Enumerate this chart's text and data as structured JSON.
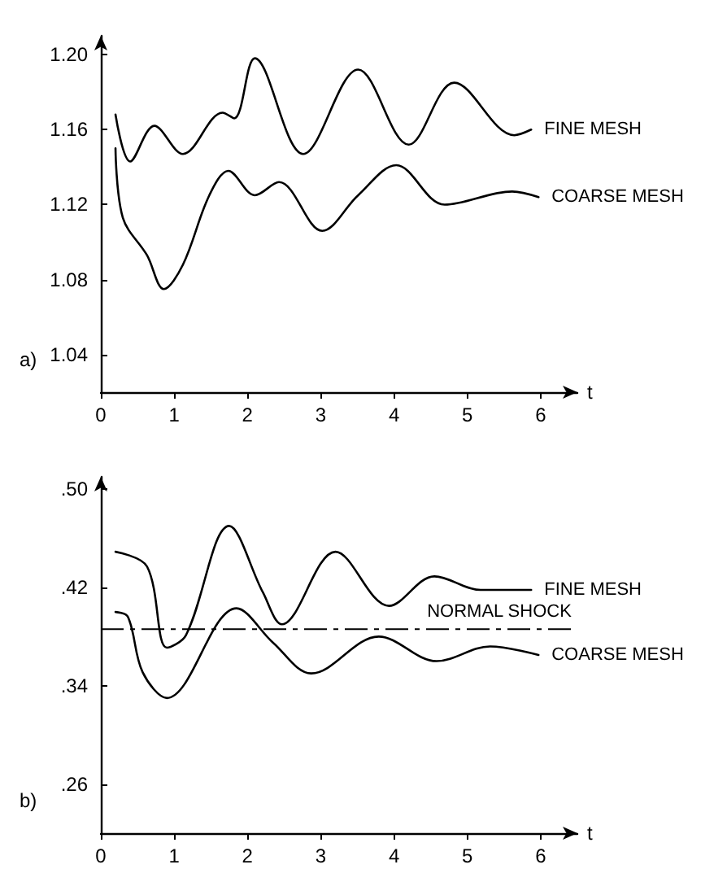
{
  "chart_data": [
    {
      "type": "line",
      "xlabel": "t",
      "annotations": [
        "a)"
      ],
      "xlim": [
        0,
        6.5
      ],
      "xticks": [
        0,
        1,
        2,
        3,
        4,
        5,
        6
      ],
      "ylim": [
        1.02,
        1.21
      ],
      "yticks": [
        {
          "value": 1.04,
          "label": "1.04"
        },
        {
          "value": 1.08,
          "label": "1.08"
        },
        {
          "value": 1.12,
          "label": "1.12"
        },
        {
          "value": 1.16,
          "label": "1.16"
        },
        {
          "value": 1.2,
          "label": "1.20"
        }
      ],
      "grid": false,
      "legend": false,
      "marker": "none",
      "line_style": "solid",
      "series": [
        {
          "name": "FINE MESH",
          "color": "#000000",
          "x": [
            0.2,
            0.4,
            0.73,
            1.12,
            1.66,
            1.82,
            2.1,
            2.76,
            3.51,
            4.2,
            4.82,
            5.64,
            5.87
          ],
          "values": [
            1.168,
            1.143,
            1.162,
            1.147,
            1.169,
            1.166,
            1.198,
            1.147,
            1.192,
            1.152,
            1.185,
            1.157,
            1.16
          ]
        },
        {
          "name": "COARSE MESH",
          "color": "#000000",
          "x": [
            0.2,
            0.3,
            0.63,
            0.86,
            1.12,
            1.48,
            1.74,
            2.1,
            2.43,
            3.02,
            3.51,
            4.03,
            4.69,
            5.61,
            5.97
          ],
          "values": [
            1.15,
            1.113,
            1.093,
            1.075,
            1.088,
            1.125,
            1.138,
            1.125,
            1.132,
            1.106,
            1.125,
            1.141,
            1.12,
            1.127,
            1.124
          ]
        }
      ]
    },
    {
      "type": "line",
      "xlabel": "t",
      "annotations": [
        "b)"
      ],
      "xlim": [
        0,
        6.5
      ],
      "xticks": [
        0,
        1,
        2,
        3,
        4,
        5,
        6
      ],
      "ylim": [
        0.22,
        0.51
      ],
      "yticks": [
        {
          "value": 0.26,
          "label": ".26"
        },
        {
          "value": 0.34,
          "label": ".34"
        },
        {
          "value": 0.42,
          "label": ".42"
        },
        {
          "value": 0.5,
          "label": ".50"
        }
      ],
      "grid": false,
      "legend": false,
      "marker": "none",
      "line_style": "solid",
      "ref_lines": [
        {
          "axis": "y",
          "value": 0.386,
          "label": "NORMAL SHOCK",
          "color": "#000000",
          "line_style": "dashed"
        }
      ],
      "series": [
        {
          "name": "FINE MESH",
          "color": "#000000",
          "x": [
            0.2,
            0.63,
            0.9,
            1.16,
            1.75,
            2.21,
            2.47,
            3.2,
            3.93,
            4.55,
            5.18,
            5.87
          ],
          "values": [
            0.449,
            0.437,
            0.371,
            0.381,
            0.47,
            0.416,
            0.39,
            0.449,
            0.405,
            0.429,
            0.418,
            0.418
          ]
        },
        {
          "name": "COARSE MESH",
          "color": "#000000",
          "x": [
            0.2,
            0.37,
            0.57,
            0.9,
            1.85,
            2.35,
            2.87,
            3.79,
            4.58,
            5.31,
            5.97
          ],
          "values": [
            0.4,
            0.396,
            0.351,
            0.33,
            0.403,
            0.375,
            0.35,
            0.38,
            0.36,
            0.372,
            0.365
          ]
        }
      ]
    }
  ]
}
